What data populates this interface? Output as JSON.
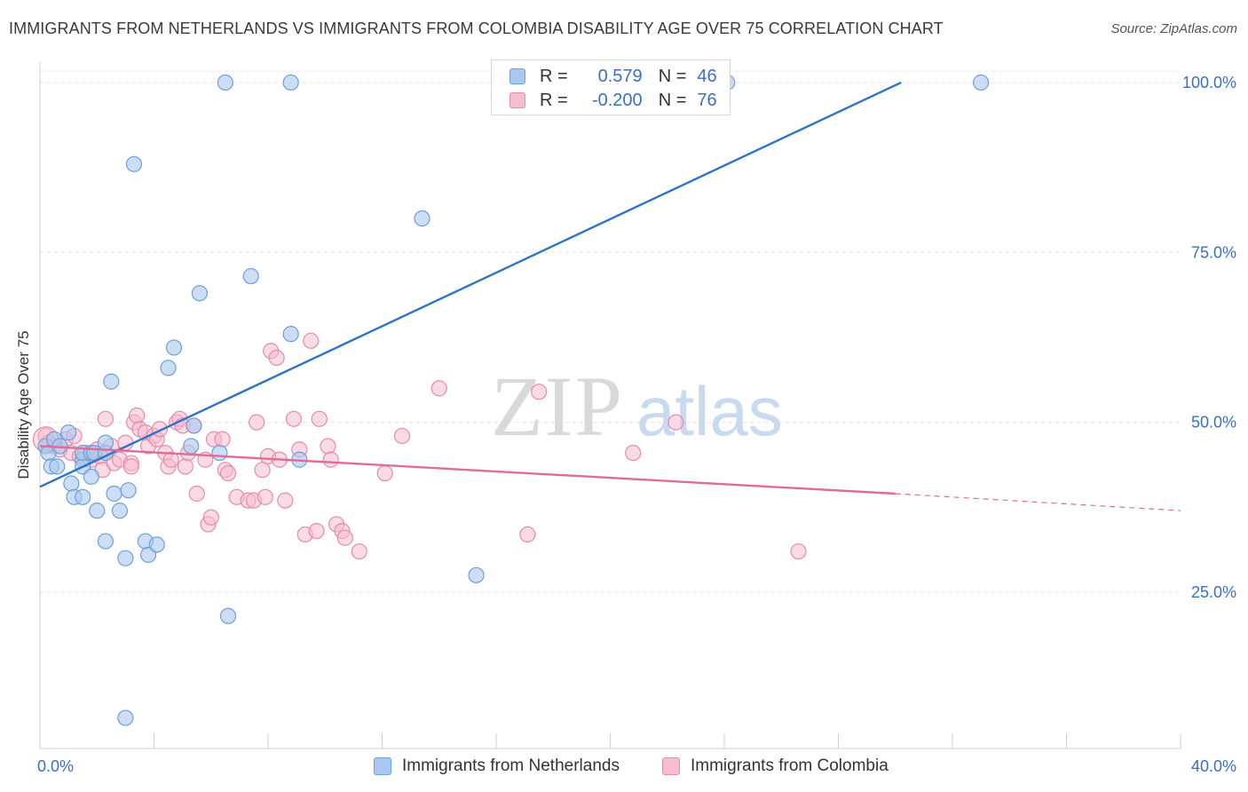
{
  "header": {
    "title": "IMMIGRANTS FROM NETHERLANDS VS IMMIGRANTS FROM COLOMBIA DISABILITY AGE OVER 75 CORRELATION CHART",
    "source": "Source: ZipAtlas.com"
  },
  "watermark": {
    "zip": "ZIP",
    "atlas": "atlas"
  },
  "stats": {
    "r_label": "R =",
    "n_label": "N =",
    "rows": [
      {
        "r": "0.579",
        "n": "46"
      },
      {
        "r": "-0.200",
        "n": "76"
      }
    ]
  },
  "colors": {
    "blue_fill": "#a9c8f0",
    "blue_stroke": "#6f9fd8",
    "blue_line": "#2d74c9",
    "pink_fill": "#f6bcd0",
    "pink_stroke": "#e88aab",
    "pink_line": "#e06b96",
    "tick_label": "#3a6fc4",
    "grid": "#e3e3e3"
  },
  "chart_data": {
    "type": "scatter",
    "title": "IMMIGRANTS FROM NETHERLANDS VS IMMIGRANTS FROM COLOMBIA DISABILITY AGE OVER 75 CORRELATION CHART",
    "xlabel": "",
    "ylabel": "Disability Age Over 75",
    "xlim": [
      0,
      40
    ],
    "ylim": [
      2,
      103
    ],
    "x_tick_labels": [
      "0.0%",
      "40.0%"
    ],
    "y_ticks": [
      25,
      50,
      75,
      100
    ],
    "y_tick_labels": [
      "25.0%",
      "50.0%",
      "75.0%",
      "100.0%"
    ],
    "grid": true,
    "legend_position": "bottom",
    "series": [
      {
        "name": "Immigrants from Netherlands",
        "color": "#a9c8f0",
        "r": 0.579,
        "n": 46,
        "trend": {
          "x": [
            0,
            30.2
          ],
          "y": [
            40.5,
            100
          ]
        },
        "points": [
          [
            0.2,
            46.5
          ],
          [
            0.3,
            45.5
          ],
          [
            0.4,
            43.5
          ],
          [
            0.5,
            47.5
          ],
          [
            0.6,
            43.5
          ],
          [
            0.7,
            46.5
          ],
          [
            1.0,
            48.5
          ],
          [
            1.1,
            41
          ],
          [
            1.2,
            39
          ],
          [
            1.5,
            44.5
          ],
          [
            1.5,
            43.5
          ],
          [
            1.5,
            45.5
          ],
          [
            1.5,
            39
          ],
          [
            1.8,
            45.5
          ],
          [
            1.8,
            42
          ],
          [
            1.9,
            45.5
          ],
          [
            2.0,
            37
          ],
          [
            2.3,
            45.5
          ],
          [
            2.3,
            47
          ],
          [
            2.3,
            32.5
          ],
          [
            2.5,
            56
          ],
          [
            2.6,
            39.5
          ],
          [
            2.8,
            37
          ],
          [
            3.0,
            30
          ],
          [
            3.1,
            40
          ],
          [
            3.3,
            88
          ],
          [
            3.7,
            32.5
          ],
          [
            3.8,
            30.5
          ],
          [
            4.1,
            32
          ],
          [
            4.5,
            58
          ],
          [
            4.7,
            61
          ],
          [
            5.3,
            46.5
          ],
          [
            5.4,
            49.5
          ],
          [
            5.6,
            69
          ],
          [
            6.3,
            45.5
          ],
          [
            6.5,
            100
          ],
          [
            6.6,
            21.5
          ],
          [
            7.4,
            71.5
          ],
          [
            8.8,
            100
          ],
          [
            8.8,
            63
          ],
          [
            9.1,
            44.5
          ],
          [
            13.4,
            80
          ],
          [
            15.3,
            27.5
          ],
          [
            24.1,
            100
          ],
          [
            33.0,
            100
          ],
          [
            3.0,
            6.5
          ]
        ]
      },
      {
        "name": "Immigrants from Colombia",
        "color": "#f6bcd0",
        "r": -0.2,
        "n": 76,
        "trend": {
          "x": [
            0,
            30.0
          ],
          "y": [
            46.5,
            39.5
          ]
        },
        "trend_dashed": {
          "x": [
            30.0,
            40.0
          ],
          "y": [
            39.5,
            37
          ]
        },
        "points": [
          [
            0.2,
            48
          ],
          [
            0.3,
            47
          ],
          [
            0.5,
            46.5
          ],
          [
            0.7,
            46
          ],
          [
            0.9,
            47.5
          ],
          [
            1.1,
            45.5
          ],
          [
            1.2,
            48
          ],
          [
            1.4,
            45
          ],
          [
            1.6,
            45.5
          ],
          [
            1.8,
            44.5
          ],
          [
            2.0,
            46
          ],
          [
            2.1,
            45
          ],
          [
            2.2,
            43
          ],
          [
            2.3,
            50.5
          ],
          [
            2.5,
            46.5
          ],
          [
            2.6,
            44
          ],
          [
            2.8,
            44.5
          ],
          [
            3.0,
            47
          ],
          [
            3.2,
            44
          ],
          [
            3.2,
            43.5
          ],
          [
            3.3,
            50
          ],
          [
            3.4,
            51
          ],
          [
            3.5,
            49
          ],
          [
            3.7,
            48.5
          ],
          [
            3.8,
            46.5
          ],
          [
            4.0,
            48
          ],
          [
            4.1,
            47.5
          ],
          [
            4.2,
            49
          ],
          [
            4.4,
            45.5
          ],
          [
            4.5,
            43.5
          ],
          [
            4.6,
            44.5
          ],
          [
            4.8,
            50
          ],
          [
            4.9,
            50.5
          ],
          [
            5.0,
            49.5
          ],
          [
            5.1,
            43.5
          ],
          [
            5.2,
            45.5
          ],
          [
            5.4,
            49.5
          ],
          [
            5.5,
            39.5
          ],
          [
            5.8,
            44.5
          ],
          [
            5.9,
            35
          ],
          [
            6.0,
            36
          ],
          [
            6.1,
            47.5
          ],
          [
            6.4,
            47.5
          ],
          [
            6.5,
            43
          ],
          [
            6.6,
            42.5
          ],
          [
            6.9,
            39
          ],
          [
            7.3,
            38.5
          ],
          [
            7.5,
            38.5
          ],
          [
            7.6,
            50
          ],
          [
            7.8,
            43
          ],
          [
            7.9,
            39
          ],
          [
            8.0,
            45
          ],
          [
            8.1,
            60.5
          ],
          [
            8.3,
            59.5
          ],
          [
            8.4,
            44.5
          ],
          [
            8.6,
            38.5
          ],
          [
            8.9,
            50.5
          ],
          [
            9.1,
            46
          ],
          [
            9.3,
            33.5
          ],
          [
            9.5,
            62
          ],
          [
            9.7,
            34
          ],
          [
            9.8,
            50.5
          ],
          [
            10.1,
            46.5
          ],
          [
            10.2,
            44.5
          ],
          [
            10.4,
            35
          ],
          [
            10.6,
            34
          ],
          [
            10.7,
            33
          ],
          [
            11.2,
            31
          ],
          [
            12.1,
            42.5
          ],
          [
            12.7,
            48
          ],
          [
            14.0,
            55
          ],
          [
            17.1,
            33.5
          ],
          [
            17.5,
            54.5
          ],
          [
            20.8,
            45.5
          ],
          [
            22.3,
            50
          ],
          [
            26.6,
            31
          ]
        ]
      }
    ]
  },
  "legend": {
    "items": [
      {
        "label": "Immigrants from Netherlands"
      },
      {
        "label": "Immigrants from Colombia"
      }
    ]
  }
}
